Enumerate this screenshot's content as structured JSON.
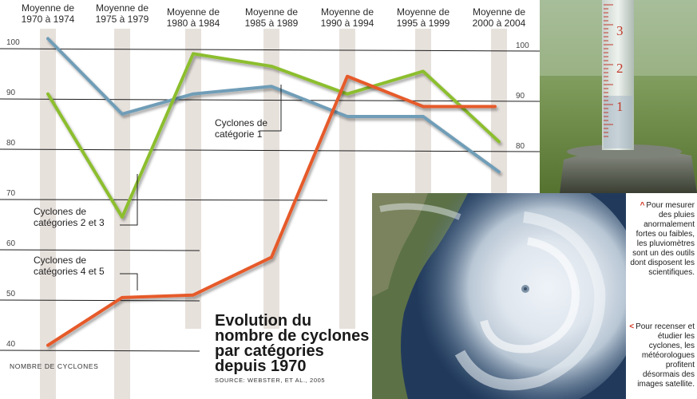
{
  "chart_data": {
    "type": "line",
    "title_lines": [
      "Evolution du",
      "nombre de cyclones",
      "par catégories",
      "depuis 1970"
    ],
    "source": "Source: Webster, et al., 2005",
    "ylabel": "Nombre de cyclones",
    "categories": [
      [
        "Moyenne de",
        "1970 à 1974"
      ],
      [
        "Moyenne de",
        "1975 à 1979"
      ],
      [
        "Moyenne de",
        "1980 à 1984"
      ],
      [
        "Moyenne de",
        "1985 à 1989"
      ],
      [
        "Moyenne de",
        "1990 à 1994"
      ],
      [
        "Moyenne de",
        "1995 à 1999"
      ],
      [
        "Moyenne de",
        "2000 à 2004"
      ]
    ],
    "left_ticks": [
      100,
      90,
      80,
      70,
      60,
      50,
      40
    ],
    "right_ticks": [
      100,
      90,
      80
    ],
    "series": [
      {
        "label_lines": [
          "Cyclones de",
          "catégorie 1"
        ],
        "color": "#6f9db7",
        "values": [
          102,
          87,
          91,
          92.5,
          86.5,
          86.5,
          75.5
        ]
      },
      {
        "label_lines": [
          "Cyclones de",
          "catégories 2 et 3"
        ],
        "color": "#8cbe2e",
        "values": [
          91,
          66.5,
          99,
          96.5,
          91,
          95.5,
          81.5
        ]
      },
      {
        "label_lines": [
          "Cyclones de",
          "catégories 4 et 5"
        ],
        "color": "#e65a2a",
        "values": [
          41,
          50.5,
          51,
          58.5,
          94.5,
          88.5,
          88.5
        ]
      }
    ]
  },
  "gauge_marks": [
    "3",
    "2",
    "1"
  ],
  "captions": {
    "rain_gauge": "Pour mesurer des pluies anormalement fortes ou faibles, les pluviomètres sont un des outils dont disposent les scientifiques.",
    "satellite": "Pour recenser et étudier les cyclones, les météorologues profitent désormais des images satellite."
  },
  "colors": {
    "grid": "#1c1c1c",
    "column_band": "#e7e1dc",
    "caret": "#d0301c"
  }
}
